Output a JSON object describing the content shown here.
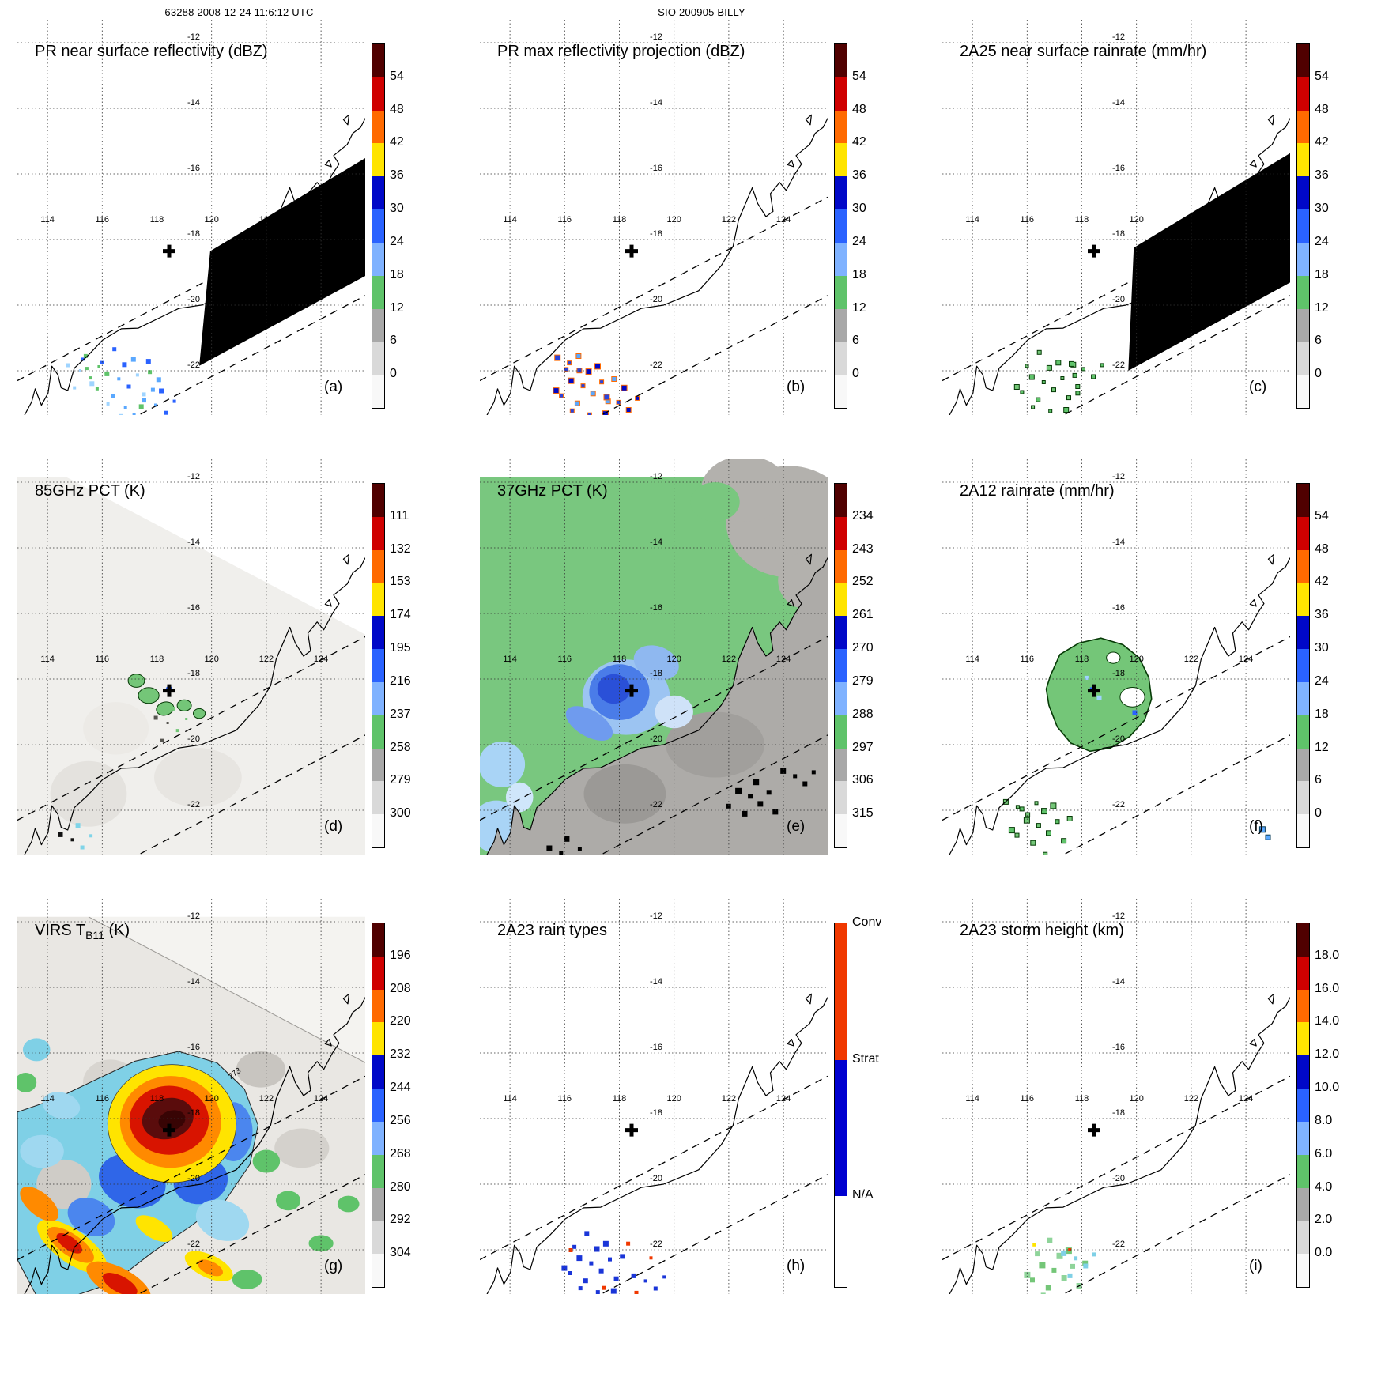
{
  "header": {
    "left": "63288 2008-12-24 11:6:12 UTC",
    "center": "SIO 200905 BILLY"
  },
  "map": {
    "lon_labels": [
      "114",
      "116",
      "118",
      "120",
      "122",
      "124"
    ],
    "lat_labels": [
      "-12",
      "-14",
      "-16",
      "-18",
      "-20",
      "-22"
    ],
    "storm_center": {
      "lon": 118.45,
      "lat": -18.35
    }
  },
  "palette": {
    "standard": [
      "#500000",
      "#cf0000",
      "#ff6a00",
      "#ffe400",
      "#0008c8",
      "#2a62ff",
      "#7fb2ff",
      "#5fc36a",
      "#a8a8a8",
      "#d9d9d9",
      "#f8f8f8"
    ],
    "raintype": [
      "#f03800",
      "#0000d0",
      "#ffffff"
    ]
  },
  "panels": [
    {
      "id": "a",
      "letter": "(a)",
      "title": "PR near surface reflectivity (dBZ)",
      "colorbar": {
        "kind": "standard",
        "ticks": [
          "54",
          "48",
          "42",
          "36",
          "30",
          "24",
          "18",
          "12",
          "6",
          "0"
        ]
      }
    },
    {
      "id": "b",
      "letter": "(b)",
      "title": "PR max reflectivity projection (dBZ)",
      "colorbar": {
        "kind": "standard",
        "ticks": [
          "54",
          "48",
          "42",
          "36",
          "30",
          "24",
          "18",
          "12",
          "6",
          "0"
        ]
      }
    },
    {
      "id": "c",
      "letter": "(c)",
      "title": "2A25 near surface rainrate (mm/hr)",
      "colorbar": {
        "kind": "standard",
        "ticks": [
          "54",
          "48",
          "42",
          "36",
          "30",
          "24",
          "18",
          "12",
          "6",
          "0"
        ]
      }
    },
    {
      "id": "d",
      "letter": "(d)",
      "title": "85GHz PCT (K)",
      "colorbar": {
        "kind": "standard",
        "ticks": [
          "111",
          "132",
          "153",
          "174",
          "195",
          "216",
          "237",
          "258",
          "279",
          "300"
        ]
      }
    },
    {
      "id": "e",
      "letter": "(e)",
      "title": "37GHz PCT (K)",
      "colorbar": {
        "kind": "standard",
        "ticks": [
          "234",
          "243",
          "252",
          "261",
          "270",
          "279",
          "288",
          "297",
          "306",
          "315"
        ]
      }
    },
    {
      "id": "f",
      "letter": "(f)",
      "title": "2A12 rainrate (mm/hr)",
      "colorbar": {
        "kind": "standard",
        "ticks": [
          "54",
          "48",
          "42",
          "36",
          "30",
          "24",
          "18",
          "12",
          "6",
          "0"
        ]
      }
    },
    {
      "id": "g",
      "letter": "(g)",
      "title_main": "VIRS T",
      "title_sub": "B11",
      "title_tail": " (K)",
      "annotation": "273",
      "colorbar": {
        "kind": "standard",
        "ticks": [
          "196",
          "208",
          "220",
          "232",
          "244",
          "256",
          "268",
          "280",
          "292",
          "304"
        ]
      }
    },
    {
      "id": "h",
      "letter": "(h)",
      "title": "2A23 rain types",
      "colorbar": {
        "kind": "raintype",
        "labels": [
          "Conv",
          "Strat",
          "N/A"
        ],
        "colors": [
          "#f03800",
          "#0000d0",
          "#ffffff"
        ]
      }
    },
    {
      "id": "i",
      "letter": "(i)",
      "title": "2A23 storm height (km)",
      "colorbar": {
        "kind": "standard",
        "ticks": [
          "18.0",
          "16.0",
          "14.0",
          "12.0",
          "10.0",
          "8.0",
          "6.0",
          "4.0",
          "2.0",
          "0.0"
        ]
      }
    }
  ],
  "chart_data": {
    "type": "heatmap",
    "layout": "3x3 satellite map panels",
    "overpass": "63288 2008-12-24 11:6:12 UTC",
    "storm": {
      "label": "SIO 200905 BILLY",
      "center_lon": 118.4,
      "center_lat": -18.4
    },
    "geo": {
      "lon_ticks": [
        114,
        116,
        118,
        120,
        122,
        124
      ],
      "lat_ticks": [
        -12,
        -14,
        -16,
        -18,
        -20,
        -22
      ],
      "lon_range": [
        113,
        125.5
      ],
      "lat_range": [
        -23.4,
        -11.8
      ],
      "grid": "dashed"
    },
    "panels": [
      {
        "id": "a",
        "title": "PR near surface reflectivity (dBZ)",
        "units": "dBZ",
        "scale_ticks": [
          54,
          48,
          42,
          36,
          30,
          24,
          18,
          12,
          6,
          0
        ]
      },
      {
        "id": "b",
        "title": "PR max reflectivity projection (dBZ)",
        "units": "dBZ",
        "scale_ticks": [
          54,
          48,
          42,
          36,
          30,
          24,
          18,
          12,
          6,
          0
        ]
      },
      {
        "id": "c",
        "title": "2A25 near surface rainrate (mm/hr)",
        "units": "mm/hr",
        "scale_ticks": [
          54,
          48,
          42,
          36,
          30,
          24,
          18,
          12,
          6,
          0
        ]
      },
      {
        "id": "d",
        "title": "85GHz PCT (K)",
        "units": "K",
        "scale_ticks": [
          111,
          132,
          153,
          174,
          195,
          216,
          237,
          258,
          279,
          300
        ]
      },
      {
        "id": "e",
        "title": "37GHz PCT (K)",
        "units": "K",
        "scale_ticks": [
          234,
          243,
          252,
          261,
          270,
          279,
          288,
          297,
          306,
          315
        ]
      },
      {
        "id": "f",
        "title": "2A12 rainrate (mm/hr)",
        "units": "mm/hr",
        "scale_ticks": [
          54,
          48,
          42,
          36,
          30,
          24,
          18,
          12,
          6,
          0
        ]
      },
      {
        "id": "g",
        "title": "VIRS T_B11 (K)",
        "units": "K",
        "scale_ticks": [
          196,
          208,
          220,
          232,
          244,
          256,
          268,
          280,
          292,
          304
        ],
        "contour_label": 273
      },
      {
        "id": "h",
        "title": "2A23 rain types",
        "units": "category",
        "categories": [
          "Conv",
          "Strat",
          "N/A"
        ]
      },
      {
        "id": "i",
        "title": "2A23 storm height (km)",
        "units": "km",
        "scale_ticks": [
          18.0,
          16.0,
          14.0,
          12.0,
          10.0,
          8.0,
          6.0,
          4.0,
          2.0,
          0.0
        ]
      }
    ]
  }
}
